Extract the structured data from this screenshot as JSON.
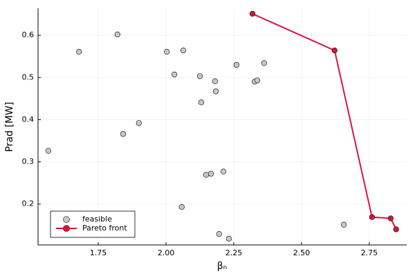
{
  "chart_data": {
    "type": "scatter",
    "x_label": "βₙ",
    "y_label": "Prad [MW]",
    "xlim": [
      1.528,
      2.888
    ],
    "ylim": [
      0.103,
      0.664
    ],
    "xticks": [
      1.75,
      {
        "value": 2,
        "label": "2.00"
      },
      2.25,
      {
        "value": 2.5,
        "label": "2.50"
      },
      2.75
    ],
    "yticks": [
      0.2,
      0.3,
      0.4,
      0.5,
      0.6
    ],
    "grid": true,
    "legend": "bottom-left",
    "series": [
      {
        "name": "feasible",
        "color": "#c8c8c8",
        "style": "markers",
        "x": [
          1.566,
          1.679,
          1.821,
          1.842,
          1.9,
          2.003,
          2.031,
          2.064,
          2.125,
          2.181,
          2.184,
          2.13,
          2.26,
          2.362,
          2.327,
          2.337,
          2.148,
          2.166,
          2.212,
          2.058,
          2.196,
          2.232,
          2.656
        ],
        "values": [
          0.326,
          0.561,
          0.602,
          0.366,
          0.392,
          0.561,
          0.507,
          0.564,
          0.503,
          0.491,
          0.467,
          0.441,
          0.53,
          0.534,
          0.49,
          0.493,
          0.269,
          0.272,
          0.277,
          0.193,
          0.129,
          0.118,
          0.151
        ]
      },
      {
        "name": "Pareto front",
        "color": "#dc143c",
        "style": "line+markers",
        "x": [
          2.319,
          2.622,
          2.76,
          2.829,
          2.849
        ],
        "values": [
          0.651,
          0.564,
          0.169,
          0.166,
          0.14
        ]
      }
    ]
  }
}
